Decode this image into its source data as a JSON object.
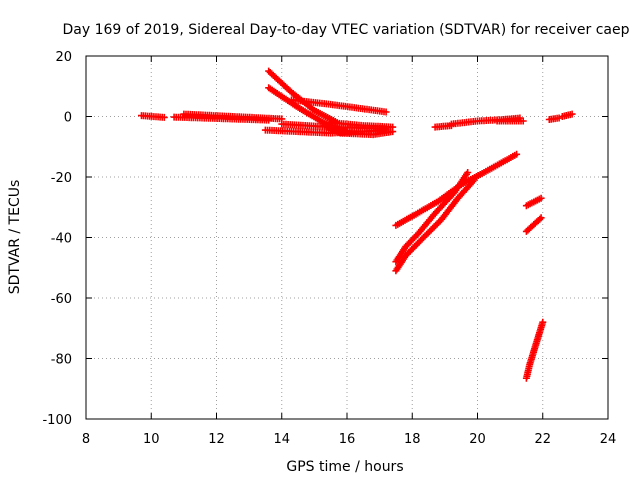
{
  "chart_data": {
    "type": "scatter",
    "title": "Day 169 of 2019, Sidereal Day-to-day VTEC variation (SDTVAR) for receiver caep",
    "xlabel": "GPS time / hours",
    "ylabel": "SDTVAR / TECUs",
    "xlim": [
      8,
      24
    ],
    "ylim": [
      -100,
      20
    ],
    "xticks": [
      8,
      10,
      12,
      14,
      16,
      18,
      20,
      22,
      24
    ],
    "yticks": [
      -100,
      -80,
      -60,
      -40,
      -20,
      0,
      20
    ],
    "grid": true,
    "series_color": "#ff0000",
    "marker": "plus",
    "series": [
      {
        "x": [
          9.7,
          10.4
        ],
        "y": [
          0.3,
          -0.3
        ]
      },
      {
        "x": [
          10.7,
          13.6
        ],
        "y": [
          -0.2,
          -1.2
        ]
      },
      {
        "x": [
          11.0,
          12.5,
          14.0
        ],
        "y": [
          0.8,
          0.0,
          -0.8
        ]
      },
      {
        "x": [
          13.5,
          14.5,
          15.5,
          17.2
        ],
        "y": [
          -4.5,
          -5.0,
          -5.5,
          -4.5
        ]
      },
      {
        "x": [
          14.0,
          15.5,
          17.2
        ],
        "y": [
          -2.5,
          -3.5,
          -4.0
        ]
      },
      {
        "x": [
          13.6,
          14.3,
          15.0,
          15.7
        ],
        "y": [
          15.0,
          8.0,
          2.0,
          -2.0
        ]
      },
      {
        "x": [
          13.6,
          14.5,
          15.2,
          16.0
        ],
        "y": [
          9.5,
          3.0,
          -1.5,
          -5.0
        ]
      },
      {
        "x": [
          14.3,
          15.5,
          17.2
        ],
        "y": [
          5.5,
          4.0,
          1.5
        ]
      },
      {
        "x": [
          15.3,
          15.8,
          16.8,
          17.4
        ],
        "y": [
          -3.0,
          -5.5,
          -6.0,
          -5.0
        ]
      },
      {
        "x": [
          15.5,
          16.5,
          17.4
        ],
        "y": [
          -2.0,
          -3.0,
          -3.5
        ]
      },
      {
        "x": [
          18.7,
          19.2
        ],
        "y": [
          -3.5,
          -3.0
        ]
      },
      {
        "x": [
          19.2,
          20.0,
          20.8,
          21.3
        ],
        "y": [
          -2.5,
          -1.5,
          -1.0,
          -0.5
        ]
      },
      {
        "x": [
          20.6,
          21.4
        ],
        "y": [
          -1.5,
          -1.5
        ]
      },
      {
        "x": [
          22.2,
          22.5
        ],
        "y": [
          -1.0,
          -0.5
        ]
      },
      {
        "x": [
          22.6,
          22.9
        ],
        "y": [
          0.0,
          0.8
        ]
      },
      {
        "x": [
          17.5,
          18.0,
          18.8,
          19.5,
          20.2,
          21.2
        ],
        "y": [
          -36.0,
          -33.0,
          -28.0,
          -22.5,
          -18.5,
          -12.5
        ]
      },
      {
        "x": [
          17.5,
          17.8,
          18.2,
          18.7,
          19.3,
          19.7
        ],
        "y": [
          -48.0,
          -43.0,
          -38.5,
          -32.0,
          -25.0,
          -18.5
        ]
      },
      {
        "x": [
          17.5,
          17.8,
          18.3,
          18.9,
          19.4,
          19.9
        ],
        "y": [
          -51.0,
          -46.0,
          -40.5,
          -34.0,
          -27.0,
          -21.0
        ]
      },
      {
        "x": [
          21.5,
          21.95
        ],
        "y": [
          -29.5,
          -27.0
        ]
      },
      {
        "x": [
          21.5,
          21.95
        ],
        "y": [
          -38.0,
          -33.5
        ]
      },
      {
        "x": [
          21.5,
          21.6,
          21.7,
          21.8,
          21.9,
          22.0
        ],
        "y": [
          -86.5,
          -82.0,
          -78.5,
          -75.0,
          -71.5,
          -68.0
        ]
      }
    ]
  }
}
